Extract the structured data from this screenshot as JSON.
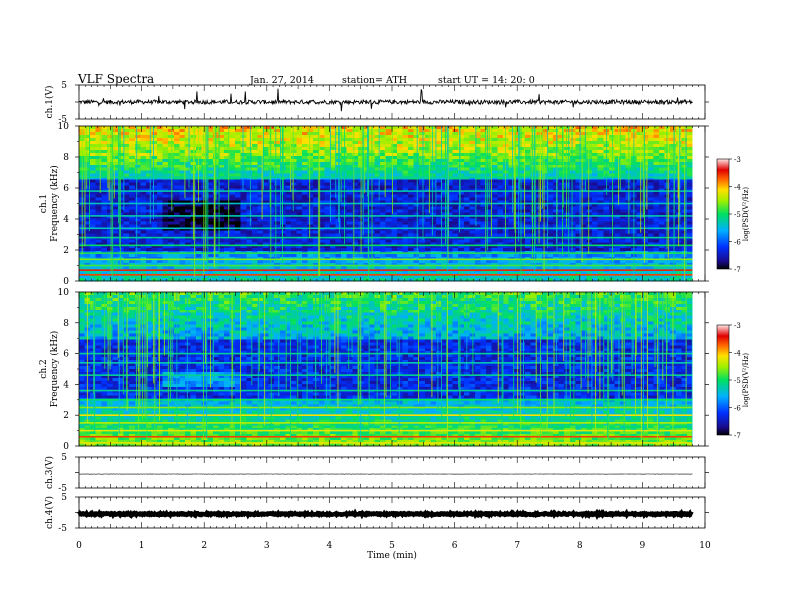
{
  "header": {
    "title": "VLF  Spectra",
    "date": "Jan. 27, 2014",
    "station": "station= ATH",
    "start": "start  UT  =    14: 20: 0"
  },
  "chart_data": [
    {
      "type": "line",
      "id": "ch1-waveform",
      "ylabel": "ch.1(V)",
      "ylim": [
        -5,
        5
      ],
      "yticks": [
        "5",
        "-5"
      ],
      "xlim": [
        0,
        10
      ],
      "description_series": "noisy waveform centered near 0 V, spikes to about +3/-3 V",
      "series": [
        {
          "baseline": 0,
          "noise_amp": 0.6,
          "spike_amp": 3.5
        }
      ]
    },
    {
      "type": "heatmap",
      "id": "ch1-spectrogram",
      "ylabel": "ch.1\nFrequency  (kHz)",
      "ylim": [
        0,
        10
      ],
      "yticks": [
        "0",
        "2",
        "4",
        "6",
        "8",
        "10"
      ],
      "xlim": [
        0,
        10
      ],
      "data_end_min": 9.8,
      "colorbar": {
        "label": "log(PSD(V²/Hz)",
        "range": [
          -7,
          -3
        ],
        "ticks": [
          "-3",
          "-4",
          "-5",
          "-6",
          "-7"
        ]
      }
    },
    {
      "type": "heatmap",
      "id": "ch2-spectrogram",
      "ylabel": "ch.2\nFrequency  (kHz)",
      "ylim": [
        0,
        10
      ],
      "yticks": [
        "0",
        "2",
        "4",
        "6",
        "8",
        "10"
      ],
      "xlim": [
        0,
        10
      ],
      "data_end_min": 9.8,
      "colorbar": {
        "label": "log(PSD(V²/Hz)",
        "range": [
          -7,
          -3
        ],
        "ticks": [
          "-3",
          "-4",
          "-5",
          "-6",
          "-7"
        ]
      }
    },
    {
      "type": "line",
      "id": "ch3-waveform",
      "ylabel": "ch.3(V)",
      "ylim": [
        -5,
        5
      ],
      "yticks": [
        "5",
        "-5"
      ],
      "xlim": [
        0,
        10
      ],
      "series": [
        {
          "baseline": -0.5,
          "noise_amp": 0.05
        }
      ]
    },
    {
      "type": "line",
      "id": "ch4-waveform",
      "ylabel": "ch.4(V)",
      "ylim": [
        -5,
        5
      ],
      "yticks": [
        "5",
        "-5"
      ],
      "xlim": [
        0,
        10
      ],
      "xlabel": "Time  (min)",
      "xticks": [
        "0",
        "1",
        "2",
        "3",
        "4",
        "5",
        "6",
        "7",
        "8",
        "9",
        "10"
      ],
      "series": [
        {
          "baseline": -0.5,
          "noise_amp": 0.25
        }
      ]
    }
  ]
}
